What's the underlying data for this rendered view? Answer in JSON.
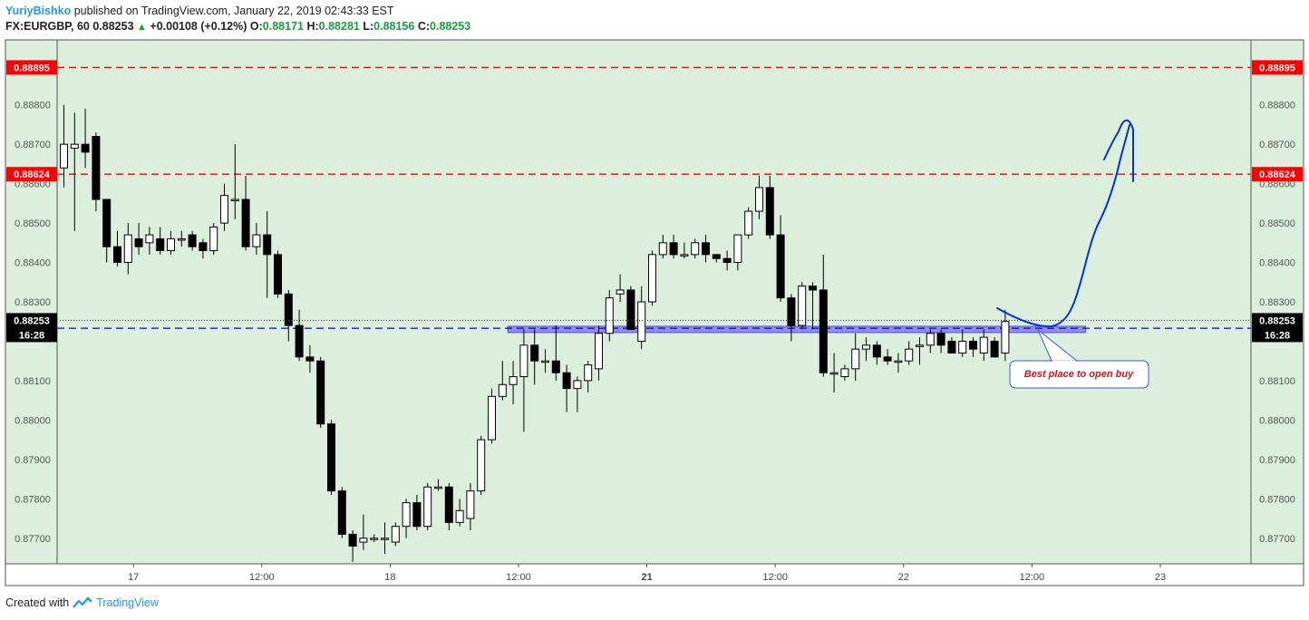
{
  "header": {
    "author": "YuriyBishko",
    "published_text": "published on TradingView.com, January 22, 2019 02:43:33 EST",
    "symbol": "FX:EURGBP, 60",
    "last": "0.88253",
    "change": "+0.00108 (+0.12%)",
    "o_label": "O:",
    "o_value": "0.88171",
    "h_label": "H:",
    "h_value": "0.88281",
    "l_label": "L:",
    "l_value": "0.88156",
    "c_label": "C:",
    "c_value": "0.88253"
  },
  "footer": {
    "created_with": "Created with",
    "brand": "TradingView"
  },
  "colors": {
    "background": "#dcefdc",
    "resistance": "#ff0000",
    "support": "#0000ff",
    "drawing": "#0033dd",
    "zone": "#7b6ee8"
  },
  "chart_data": {
    "type": "candlestick",
    "y_range": [
      0.87635,
      0.88965
    ],
    "y_ticks": [
      "0.88800",
      "0.88700",
      "0.88600",
      "0.88500",
      "0.88400",
      "0.88300",
      "0.88100",
      "0.88000",
      "0.87900",
      "0.87800",
      "0.87700"
    ],
    "x_ticks": [
      {
        "label": "17",
        "bar": 6.5,
        "bold": false
      },
      {
        "label": "12:00",
        "bar": 18.5,
        "bold": false
      },
      {
        "label": "18",
        "bar": 30.5,
        "bold": false
      },
      {
        "label": "12:00",
        "bar": 42.5,
        "bold": false
      },
      {
        "label": "21",
        "bar": 54.5,
        "bold": true
      },
      {
        "label": "12:00",
        "bar": 66.5,
        "bold": false
      },
      {
        "label": "22",
        "bar": 78.5,
        "bold": false
      },
      {
        "label": "12:00",
        "bar": 90.5,
        "bold": false
      },
      {
        "label": "23",
        "bar": 102.5,
        "bold": false
      }
    ],
    "levels": [
      {
        "label": "0.88895",
        "value": 0.88895,
        "color": "#ff0000"
      },
      {
        "label": "0.88624",
        "value": 0.88624,
        "color": "#ff0000"
      },
      {
        "label": "0.88233",
        "value": 0.88233,
        "color": "#0000ff"
      }
    ],
    "last_price": {
      "label": "0.88253",
      "value": 0.88253,
      "countdown": "16:28"
    },
    "zone": {
      "from_bar": 41.5,
      "to_bar": 95.5,
      "low": 0.88222,
      "high": 0.88238
    },
    "annotation": "Best place to open buy",
    "candles": [
      [
        0.8864,
        0.887,
        0.888,
        0.8859
      ],
      [
        0.8869,
        0.887,
        0.8878,
        0.8848
      ],
      [
        0.887,
        0.8868,
        0.8879,
        0.8864
      ],
      [
        0.8872,
        0.8856,
        0.8873,
        0.8853
      ],
      [
        0.8856,
        0.8844,
        0.8856,
        0.884
      ],
      [
        0.8844,
        0.884,
        0.8848,
        0.8839
      ],
      [
        0.884,
        0.8847,
        0.885,
        0.8837
      ],
      [
        0.8846,
        0.8844,
        0.885,
        0.8842
      ],
      [
        0.8845,
        0.8847,
        0.8849,
        0.8842
      ],
      [
        0.8846,
        0.8843,
        0.8849,
        0.8842
      ],
      [
        0.8843,
        0.8846,
        0.8848,
        0.8842
      ],
      [
        0.8846,
        0.8846,
        0.8848,
        0.8844
      ],
      [
        0.8847,
        0.8844,
        0.8848,
        0.8843
      ],
      [
        0.8845,
        0.8843,
        0.8846,
        0.8841
      ],
      [
        0.8843,
        0.8849,
        0.885,
        0.8842
      ],
      [
        0.885,
        0.8857,
        0.886,
        0.8848
      ],
      [
        0.8856,
        0.8856,
        0.887,
        0.8851
      ],
      [
        0.8856,
        0.8844,
        0.8862,
        0.8843
      ],
      [
        0.8844,
        0.8847,
        0.885,
        0.8842
      ],
      [
        0.8847,
        0.8842,
        0.8853,
        0.8831
      ],
      [
        0.8842,
        0.8832,
        0.8843,
        0.8831
      ],
      [
        0.8832,
        0.8824,
        0.8833,
        0.882
      ],
      [
        0.8824,
        0.8816,
        0.8828,
        0.8815
      ],
      [
        0.8816,
        0.8815,
        0.8819,
        0.8812
      ],
      [
        0.8815,
        0.8799,
        0.8816,
        0.8798
      ],
      [
        0.8799,
        0.8782,
        0.88,
        0.8781
      ],
      [
        0.8782,
        0.8771,
        0.8783,
        0.877
      ],
      [
        0.8771,
        0.8768,
        0.8772,
        0.8764
      ],
      [
        0.8769,
        0.877,
        0.8776,
        0.8767
      ],
      [
        0.877,
        0.877,
        0.8771,
        0.8769
      ],
      [
        0.877,
        0.877,
        0.8774,
        0.8766
      ],
      [
        0.8769,
        0.8773,
        0.8774,
        0.8768
      ],
      [
        0.8773,
        0.8779,
        0.878,
        0.877
      ],
      [
        0.8779,
        0.8773,
        0.8781,
        0.8772
      ],
      [
        0.8773,
        0.8783,
        0.8784,
        0.8772
      ],
      [
        0.8783,
        0.8783,
        0.8785,
        0.8782
      ],
      [
        0.8783,
        0.8774,
        0.8784,
        0.8772
      ],
      [
        0.8774,
        0.8777,
        0.878,
        0.8773
      ],
      [
        0.8775,
        0.8782,
        0.8784,
        0.8772
      ],
      [
        0.8782,
        0.8795,
        0.8796,
        0.8781
      ],
      [
        0.8795,
        0.8806,
        0.8808,
        0.8794
      ],
      [
        0.8806,
        0.8809,
        0.8815,
        0.8805
      ],
      [
        0.8809,
        0.8811,
        0.8815,
        0.8804
      ],
      [
        0.8811,
        0.8819,
        0.8823,
        0.8797
      ],
      [
        0.8819,
        0.8815,
        0.8823,
        0.8809
      ],
      [
        0.8815,
        0.8815,
        0.8818,
        0.8812
      ],
      [
        0.8815,
        0.8812,
        0.8824,
        0.881
      ],
      [
        0.8812,
        0.8808,
        0.8814,
        0.8802
      ],
      [
        0.8808,
        0.881,
        0.8811,
        0.8802
      ],
      [
        0.881,
        0.8814,
        0.8815,
        0.8807
      ],
      [
        0.8813,
        0.8822,
        0.8824,
        0.881
      ],
      [
        0.8822,
        0.8831,
        0.8833,
        0.882
      ],
      [
        0.8832,
        0.8833,
        0.8837,
        0.883
      ],
      [
        0.8833,
        0.8823,
        0.8834,
        0.8823
      ],
      [
        0.882,
        0.883,
        0.8834,
        0.8818
      ],
      [
        0.883,
        0.8842,
        0.8843,
        0.8829
      ],
      [
        0.8842,
        0.8845,
        0.8847,
        0.8841
      ],
      [
        0.8845,
        0.8842,
        0.8847,
        0.8841
      ],
      [
        0.8842,
        0.8842,
        0.8845,
        0.8841
      ],
      [
        0.8842,
        0.8845,
        0.8846,
        0.8841
      ],
      [
        0.8845,
        0.8842,
        0.8847,
        0.884
      ],
      [
        0.8842,
        0.8841,
        0.8842,
        0.884
      ],
      [
        0.8841,
        0.884,
        0.8843,
        0.8838
      ],
      [
        0.884,
        0.8847,
        0.8847,
        0.8838
      ],
      [
        0.8847,
        0.8853,
        0.8854,
        0.8846
      ],
      [
        0.8853,
        0.8859,
        0.8862,
        0.8851
      ],
      [
        0.8859,
        0.8847,
        0.8862,
        0.8846
      ],
      [
        0.8847,
        0.8831,
        0.8852,
        0.883
      ],
      [
        0.8831,
        0.8824,
        0.8832,
        0.882
      ],
      [
        0.8824,
        0.8834,
        0.8835,
        0.8823
      ],
      [
        0.8834,
        0.8833,
        0.8835,
        0.8823
      ],
      [
        0.8833,
        0.8812,
        0.8842,
        0.8811
      ],
      [
        0.8812,
        0.8812,
        0.8817,
        0.8807
      ],
      [
        0.8811,
        0.8813,
        0.8814,
        0.881
      ],
      [
        0.8813,
        0.8818,
        0.8822,
        0.881
      ],
      [
        0.8818,
        0.8819,
        0.8821,
        0.8815
      ],
      [
        0.8819,
        0.8816,
        0.882,
        0.8814
      ],
      [
        0.8816,
        0.8815,
        0.8818,
        0.8814
      ],
      [
        0.8815,
        0.8815,
        0.8817,
        0.8812
      ],
      [
        0.8815,
        0.8818,
        0.882,
        0.8814
      ],
      [
        0.8819,
        0.8819,
        0.8821,
        0.8814
      ],
      [
        0.8819,
        0.8822,
        0.8823,
        0.8817
      ],
      [
        0.8822,
        0.8819,
        0.8823,
        0.8817
      ],
      [
        0.882,
        0.8817,
        0.8821,
        0.8817
      ],
      [
        0.8817,
        0.882,
        0.8823,
        0.8816
      ],
      [
        0.882,
        0.8818,
        0.8821,
        0.8816
      ],
      [
        0.8817,
        0.8821,
        0.8823,
        0.8815
      ],
      [
        0.882,
        0.8816,
        0.8821,
        0.8816
      ],
      [
        0.8817,
        0.8825,
        0.8828,
        0.8815
      ]
    ]
  }
}
